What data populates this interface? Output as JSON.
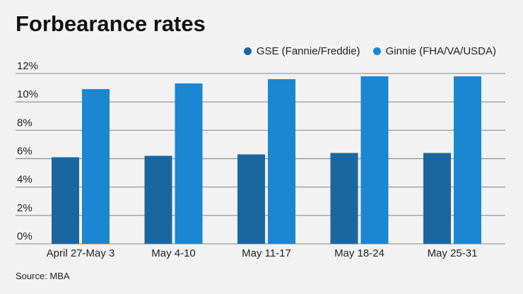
{
  "chart_data": {
    "type": "bar",
    "title": "Forbearance rates",
    "categories": [
      "April 27-May 3",
      "May 4-10",
      "May 11-17",
      "May 18-24",
      "May 25-31"
    ],
    "series": [
      {
        "name": "GSE (Fannie/Freddie)",
        "color": "#1a67a0",
        "values": [
          6.1,
          6.2,
          6.3,
          6.4,
          6.4
        ]
      },
      {
        "name": "Ginnie (FHA/VA/USDA)",
        "color": "#1b86d2",
        "values": [
          10.9,
          11.3,
          11.6,
          11.8,
          11.8
        ]
      }
    ],
    "yticks": [
      "0%",
      "2%",
      "4%",
      "6%",
      "8%",
      "10%",
      "12%"
    ],
    "ylim": [
      0,
      12
    ],
    "xlabel": "",
    "ylabel": "",
    "grid": true,
    "legend": "top-right",
    "source": "Source: MBA"
  }
}
